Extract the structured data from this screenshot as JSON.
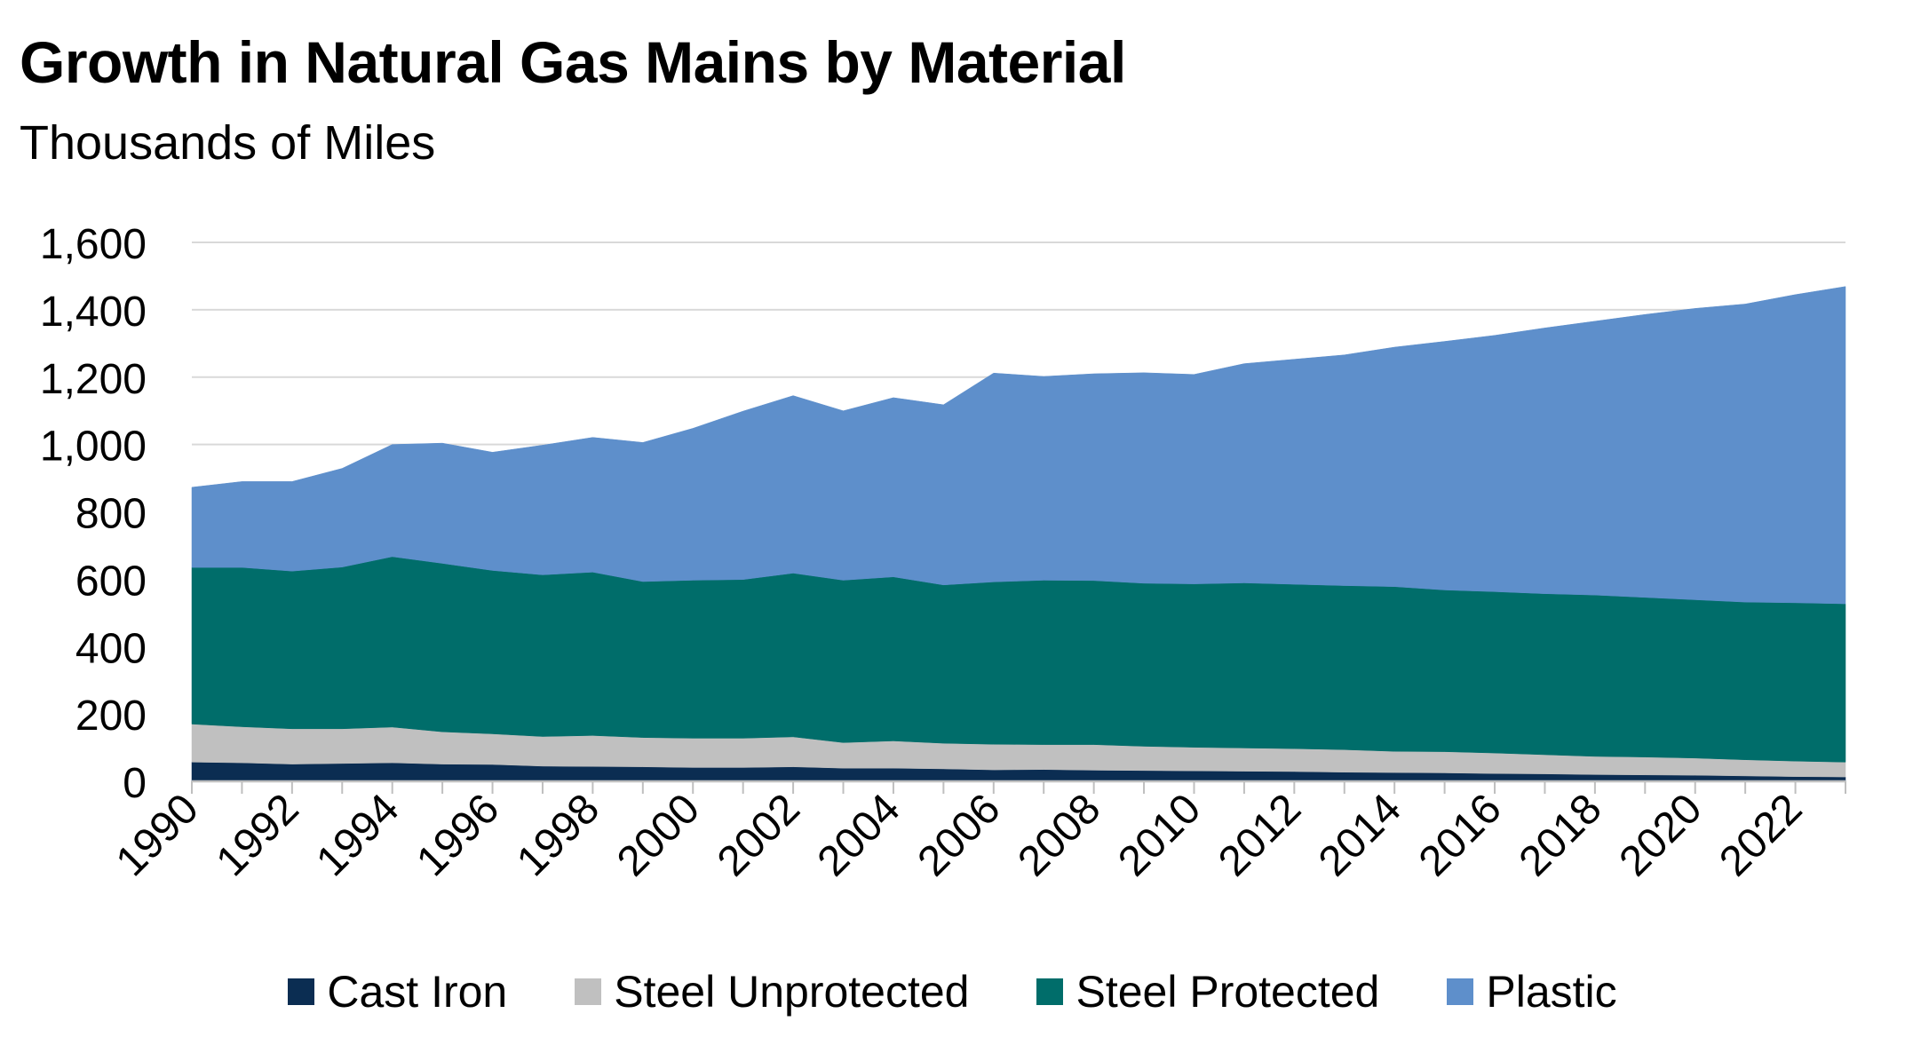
{
  "chart_data": {
    "type": "area",
    "stacked": true,
    "title": "Growth in Natural Gas Mains by Material",
    "subtitle": "Thousands of Miles",
    "xlabel": "",
    "ylabel": "",
    "ylim": [
      0,
      1600
    ],
    "yticks": [
      0,
      200,
      400,
      600,
      800,
      1000,
      1200,
      1400,
      1600
    ],
    "ytick_labels": [
      "0",
      "200",
      "400",
      "600",
      "800",
      "1,000",
      "1,200",
      "1,400",
      "1,600"
    ],
    "xtick_labels": [
      "1990",
      "1992",
      "1994",
      "1996",
      "1998",
      "2000",
      "2002",
      "2004",
      "2006",
      "2008",
      "2010",
      "2012",
      "2014",
      "2016",
      "2018",
      "2020",
      "2022"
    ],
    "grid": "horizontal",
    "legend": "bottom",
    "x": [
      1990,
      1991,
      1992,
      1993,
      1994,
      1995,
      1996,
      1997,
      1998,
      1999,
      2000,
      2001,
      2002,
      2003,
      2004,
      2005,
      2006,
      2007,
      2008,
      2009,
      2010,
      2011,
      2012,
      2013,
      2014,
      2015,
      2016,
      2017,
      2018,
      2019,
      2020,
      2021,
      2022,
      2023
    ],
    "series": [
      {
        "name": "Cast Iron",
        "color": "#0b2d52",
        "values": [
          57,
          55,
          51,
          53,
          55,
          51,
          50,
          45,
          44,
          43,
          41,
          41,
          43,
          39,
          39,
          37,
          34,
          35,
          33,
          32,
          31,
          30,
          29,
          27,
          26,
          25,
          23,
          22,
          20,
          19,
          18,
          16,
          14,
          13
        ]
      },
      {
        "name": "Steel Unprotected",
        "color": "#c0c0c0",
        "values": [
          113,
          107,
          105,
          103,
          106,
          96,
          91,
          88,
          92,
          87,
          87,
          87,
          89,
          76,
          81,
          76,
          76,
          74,
          76,
          72,
          70,
          69,
          68,
          67,
          63,
          63,
          61,
          57,
          54,
          53,
          51,
          48,
          46,
          44
        ]
      },
      {
        "name": "Steel Protected",
        "color": "#006d6a",
        "values": [
          465,
          473,
          468,
          480,
          506,
          500,
          485,
          480,
          485,
          463,
          469,
          471,
          486,
          482,
          487,
          470,
          482,
          488,
          487,
          484,
          485,
          490,
          488,
          487,
          489,
          480,
          479,
          478,
          479,
          474,
          470,
          468,
          470,
          470
        ]
      },
      {
        "name": "Plastic",
        "color": "#5e8fcb",
        "values": [
          238,
          255,
          266,
          293,
          333,
          357,
          351,
          385,
          400,
          413,
          451,
          500,
          527,
          503,
          532,
          535,
          620,
          605,
          614,
          625,
          622,
          651,
          668,
          685,
          711,
          738,
          761,
          789,
          813,
          840,
          865,
          885,
          915,
          942
        ]
      }
    ]
  }
}
